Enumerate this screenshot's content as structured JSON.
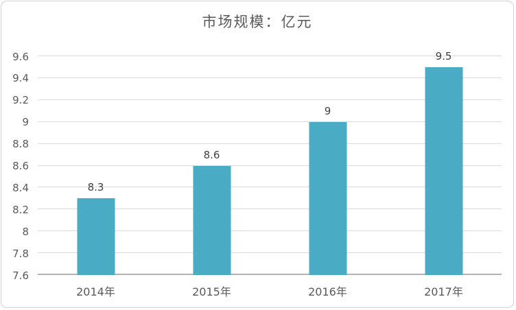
{
  "chart_data": {
    "type": "bar",
    "title": "市场规模：亿元",
    "categories": [
      "2014年",
      "2015年",
      "2016年",
      "2017年"
    ],
    "values": [
      8.3,
      8.6,
      9,
      9.5
    ],
    "value_labels": [
      "8.3",
      "8.6",
      "9",
      "9.5"
    ],
    "xlabel": "",
    "ylabel": "",
    "ylim": [
      7.6,
      9.6
    ],
    "yticks": [
      7.6,
      7.8,
      8,
      8.2,
      8.4,
      8.6,
      8.8,
      9,
      9.2,
      9.4,
      9.6
    ],
    "ytick_labels": [
      "7.6",
      "7.8",
      "8",
      "8.2",
      "8.4",
      "8.6",
      "8.8",
      "9",
      "9.2",
      "9.4",
      "9.6"
    ],
    "grid": true,
    "legend": false,
    "colors": {
      "bar": "#4aabc5",
      "gridline": "#d9d9d9",
      "axis_line": "#b3b3b3",
      "tick_text": "#595959",
      "value_label_text": "#404040",
      "title_text": "#595959",
      "frame_border": "#d2d2d2",
      "background": "#ffffff"
    }
  }
}
